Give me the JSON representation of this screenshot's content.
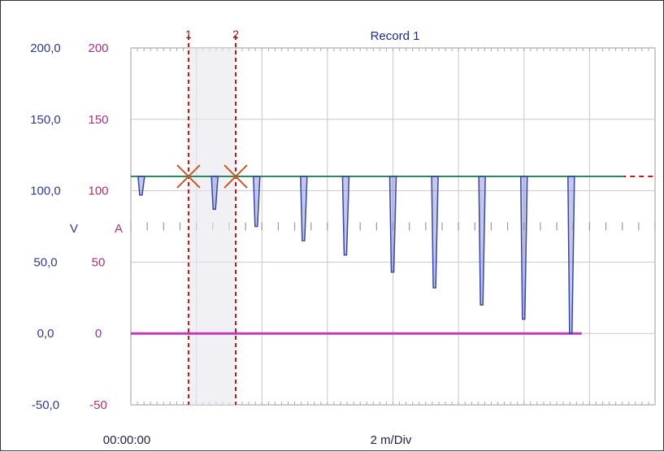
{
  "chart_data": {
    "type": "line",
    "title": "Record 1",
    "ylim": [
      -50,
      200
    ],
    "y_ticks_V": [
      "200,0",
      "150,0",
      "100,0",
      "50,0",
      "0,0",
      "-50,0"
    ],
    "y_ticks_A": [
      "200",
      "150",
      "100",
      "50",
      "0",
      "-50"
    ],
    "y_tick_values": [
      200,
      150,
      100,
      50,
      0,
      -50
    ],
    "ylabel_V": "V",
    "ylabel_A": "A",
    "x_start_label": "00:00:00",
    "x_scale_label": "2 m/Div",
    "grid": true,
    "cursors": [
      {
        "label": "1",
        "time": 0.45
      },
      {
        "label": "2",
        "time": 0.9
      }
    ],
    "series": [
      {
        "color": "#3a45a8",
        "baseline": 110,
        "pulses": [
          {
            "t": 0.0,
            "min": 97
          },
          {
            "t": 0.7,
            "min": 87
          },
          {
            "t": 1.1,
            "min": 75
          },
          {
            "t": 1.55,
            "min": 65
          },
          {
            "t": 1.95,
            "min": 55
          },
          {
            "t": 2.4,
            "min": 43
          },
          {
            "t": 2.8,
            "min": 32
          },
          {
            "t": 3.25,
            "min": 20
          },
          {
            "t": 3.65,
            "min": 10
          },
          {
            "t": 4.1,
            "min": 0
          }
        ]
      },
      {
        "color": "#2e8a5a",
        "level": 110
      },
      {
        "color": "#c43ab8",
        "level": 0
      }
    ],
    "reference_level": 110,
    "reference_color": "#c41818"
  }
}
